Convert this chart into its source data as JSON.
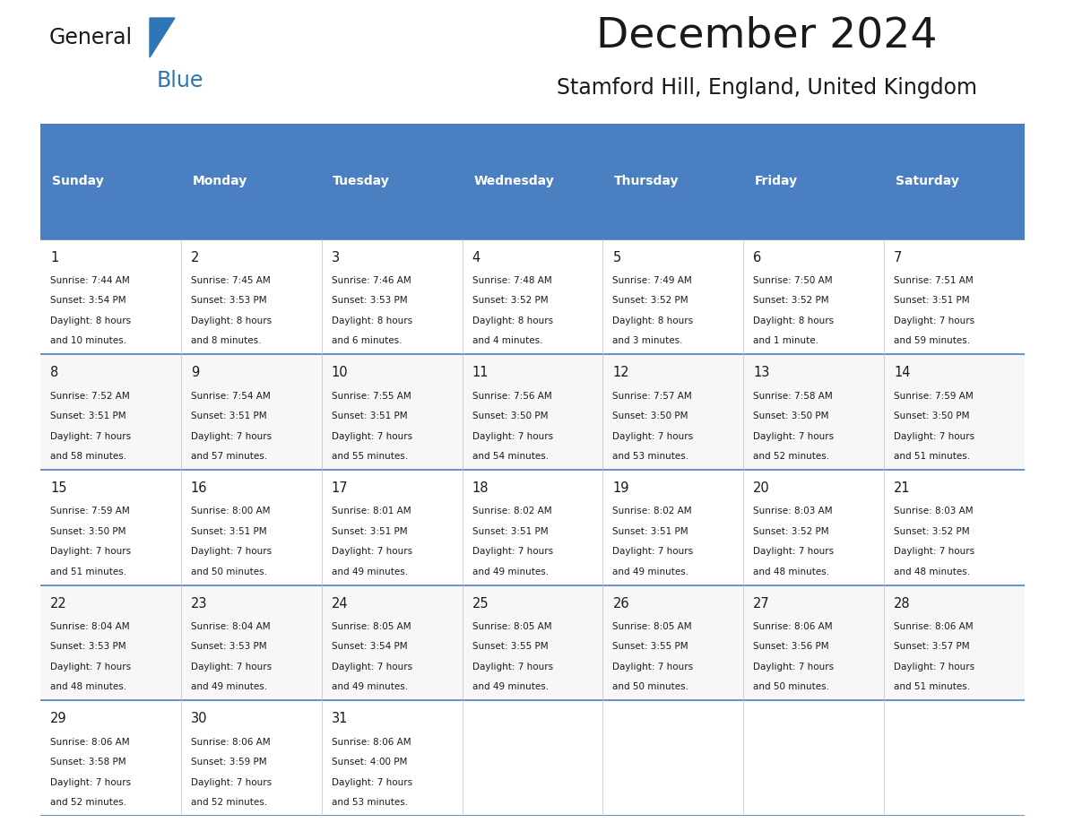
{
  "title": "December 2024",
  "subtitle": "Stamford Hill, England, United Kingdom",
  "header_color": "#4a7fc1",
  "header_text_color": "#FFFFFF",
  "border_color": "#4a7fc1",
  "days_of_week": [
    "Sunday",
    "Monday",
    "Tuesday",
    "Wednesday",
    "Thursday",
    "Friday",
    "Saturday"
  ],
  "weeks": [
    [
      {
        "day": "1",
        "sunrise": "7:44 AM",
        "sunset": "3:54 PM",
        "daylight": "8 hours",
        "daylight2": "and 10 minutes."
      },
      {
        "day": "2",
        "sunrise": "7:45 AM",
        "sunset": "3:53 PM",
        "daylight": "8 hours",
        "daylight2": "and 8 minutes."
      },
      {
        "day": "3",
        "sunrise": "7:46 AM",
        "sunset": "3:53 PM",
        "daylight": "8 hours",
        "daylight2": "and 6 minutes."
      },
      {
        "day": "4",
        "sunrise": "7:48 AM",
        "sunset": "3:52 PM",
        "daylight": "8 hours",
        "daylight2": "and 4 minutes."
      },
      {
        "day": "5",
        "sunrise": "7:49 AM",
        "sunset": "3:52 PM",
        "daylight": "8 hours",
        "daylight2": "and 3 minutes."
      },
      {
        "day": "6",
        "sunrise": "7:50 AM",
        "sunset": "3:52 PM",
        "daylight": "8 hours",
        "daylight2": "and 1 minute."
      },
      {
        "day": "7",
        "sunrise": "7:51 AM",
        "sunset": "3:51 PM",
        "daylight": "7 hours",
        "daylight2": "and 59 minutes."
      }
    ],
    [
      {
        "day": "8",
        "sunrise": "7:52 AM",
        "sunset": "3:51 PM",
        "daylight": "7 hours",
        "daylight2": "and 58 minutes."
      },
      {
        "day": "9",
        "sunrise": "7:54 AM",
        "sunset": "3:51 PM",
        "daylight": "7 hours",
        "daylight2": "and 57 minutes."
      },
      {
        "day": "10",
        "sunrise": "7:55 AM",
        "sunset": "3:51 PM",
        "daylight": "7 hours",
        "daylight2": "and 55 minutes."
      },
      {
        "day": "11",
        "sunrise": "7:56 AM",
        "sunset": "3:50 PM",
        "daylight": "7 hours",
        "daylight2": "and 54 minutes."
      },
      {
        "day": "12",
        "sunrise": "7:57 AM",
        "sunset": "3:50 PM",
        "daylight": "7 hours",
        "daylight2": "and 53 minutes."
      },
      {
        "day": "13",
        "sunrise": "7:58 AM",
        "sunset": "3:50 PM",
        "daylight": "7 hours",
        "daylight2": "and 52 minutes."
      },
      {
        "day": "14",
        "sunrise": "7:59 AM",
        "sunset": "3:50 PM",
        "daylight": "7 hours",
        "daylight2": "and 51 minutes."
      }
    ],
    [
      {
        "day": "15",
        "sunrise": "7:59 AM",
        "sunset": "3:50 PM",
        "daylight": "7 hours",
        "daylight2": "and 51 minutes."
      },
      {
        "day": "16",
        "sunrise": "8:00 AM",
        "sunset": "3:51 PM",
        "daylight": "7 hours",
        "daylight2": "and 50 minutes."
      },
      {
        "day": "17",
        "sunrise": "8:01 AM",
        "sunset": "3:51 PM",
        "daylight": "7 hours",
        "daylight2": "and 49 minutes."
      },
      {
        "day": "18",
        "sunrise": "8:02 AM",
        "sunset": "3:51 PM",
        "daylight": "7 hours",
        "daylight2": "and 49 minutes."
      },
      {
        "day": "19",
        "sunrise": "8:02 AM",
        "sunset": "3:51 PM",
        "daylight": "7 hours",
        "daylight2": "and 49 minutes."
      },
      {
        "day": "20",
        "sunrise": "8:03 AM",
        "sunset": "3:52 PM",
        "daylight": "7 hours",
        "daylight2": "and 48 minutes."
      },
      {
        "day": "21",
        "sunrise": "8:03 AM",
        "sunset": "3:52 PM",
        "daylight": "7 hours",
        "daylight2": "and 48 minutes."
      }
    ],
    [
      {
        "day": "22",
        "sunrise": "8:04 AM",
        "sunset": "3:53 PM",
        "daylight": "7 hours",
        "daylight2": "and 48 minutes."
      },
      {
        "day": "23",
        "sunrise": "8:04 AM",
        "sunset": "3:53 PM",
        "daylight": "7 hours",
        "daylight2": "and 49 minutes."
      },
      {
        "day": "24",
        "sunrise": "8:05 AM",
        "sunset": "3:54 PM",
        "daylight": "7 hours",
        "daylight2": "and 49 minutes."
      },
      {
        "day": "25",
        "sunrise": "8:05 AM",
        "sunset": "3:55 PM",
        "daylight": "7 hours",
        "daylight2": "and 49 minutes."
      },
      {
        "day": "26",
        "sunrise": "8:05 AM",
        "sunset": "3:55 PM",
        "daylight": "7 hours",
        "daylight2": "and 50 minutes."
      },
      {
        "day": "27",
        "sunrise": "8:06 AM",
        "sunset": "3:56 PM",
        "daylight": "7 hours",
        "daylight2": "and 50 minutes."
      },
      {
        "day": "28",
        "sunrise": "8:06 AM",
        "sunset": "3:57 PM",
        "daylight": "7 hours",
        "daylight2": "and 51 minutes."
      }
    ],
    [
      {
        "day": "29",
        "sunrise": "8:06 AM",
        "sunset": "3:58 PM",
        "daylight": "7 hours",
        "daylight2": "and 52 minutes."
      },
      {
        "day": "30",
        "sunrise": "8:06 AM",
        "sunset": "3:59 PM",
        "daylight": "7 hours",
        "daylight2": "and 52 minutes."
      },
      {
        "day": "31",
        "sunrise": "8:06 AM",
        "sunset": "4:00 PM",
        "daylight": "7 hours",
        "daylight2": "and 53 minutes."
      },
      null,
      null,
      null,
      null
    ]
  ]
}
